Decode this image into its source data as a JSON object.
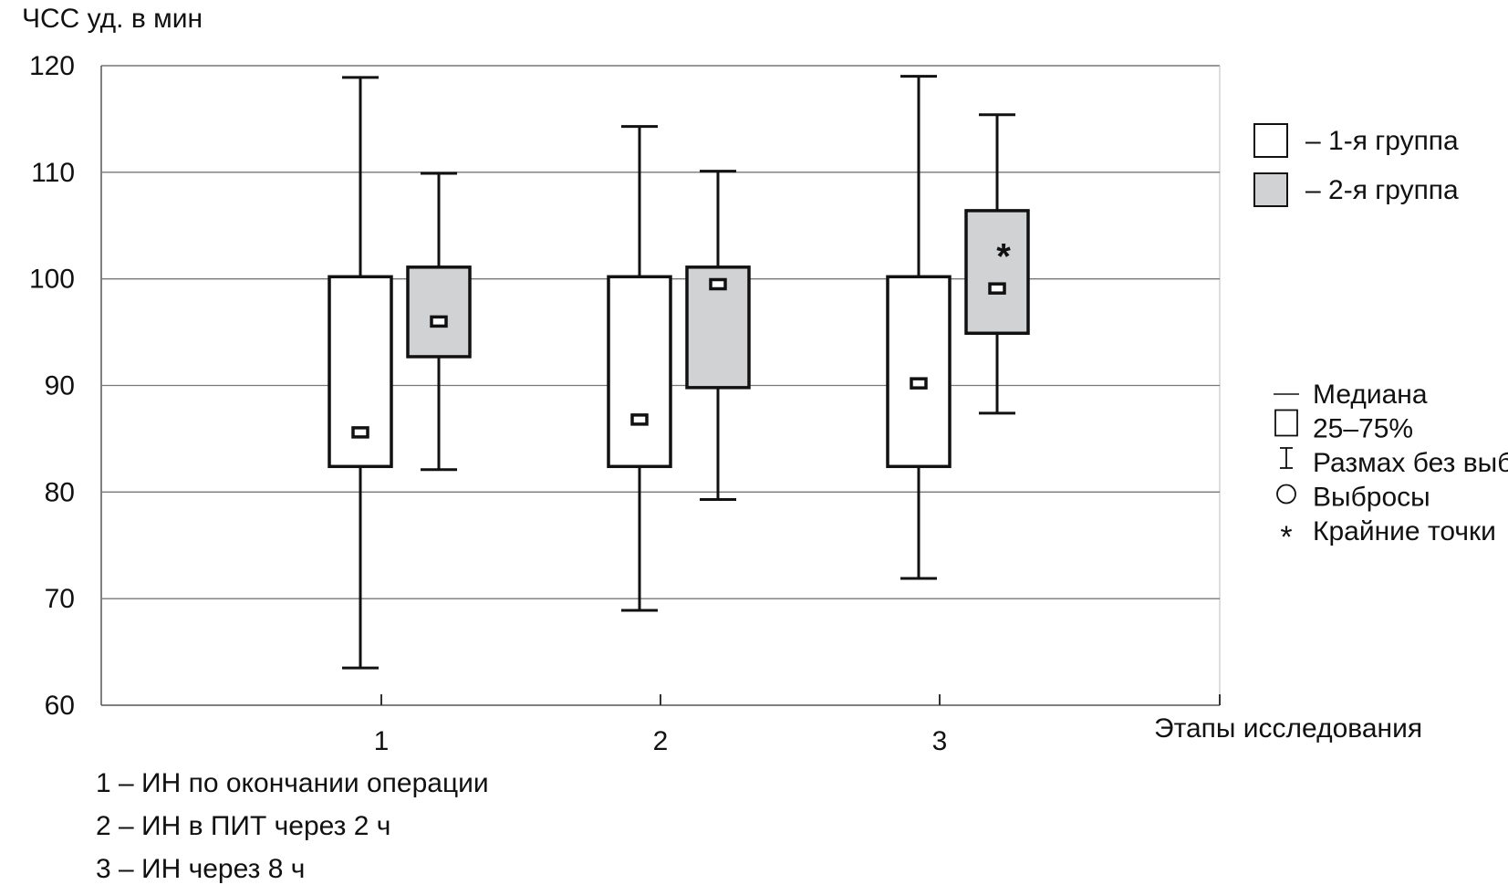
{
  "chart_data": {
    "type": "boxplot",
    "ylabel": "ЧСС уд. в мин",
    "xlabel": "Этапы исследования",
    "ylim": [
      60,
      120
    ],
    "yticks": [
      "60",
      "70",
      "80",
      "90",
      "100",
      "110",
      "120"
    ],
    "categories": [
      "1",
      "2",
      "3"
    ],
    "grid": true,
    "series": [
      {
        "name": "– 1-я группа",
        "fill": "#ffffff",
        "boxes": [
          {
            "whisker_low": 63.5,
            "q1": 82.4,
            "median": 85.6,
            "q3": 100.2,
            "whisker_high": 118.9
          },
          {
            "whisker_low": 68.9,
            "q1": 82.4,
            "median": 86.8,
            "q3": 100.2,
            "whisker_high": 114.3
          },
          {
            "whisker_low": 71.9,
            "q1": 82.4,
            "median": 90.2,
            "q3": 100.2,
            "whisker_high": 119.0
          }
        ]
      },
      {
        "name": "– 2-я группа",
        "fill": "#d1d2d4",
        "boxes": [
          {
            "whisker_low": 82.1,
            "q1": 92.7,
            "median": 96.0,
            "q3": 101.1,
            "whisker_high": 109.9
          },
          {
            "whisker_low": 79.3,
            "q1": 89.8,
            "median": 99.5,
            "q3": 101.1,
            "whisker_high": 110.1
          },
          {
            "whisker_low": 87.4,
            "q1": 94.9,
            "median": 99.1,
            "q3": 106.4,
            "whisker_high": 115.4,
            "extreme": 103.0
          }
        ]
      }
    ],
    "symbol_legend": [
      "Медиана",
      "25–75%",
      "Размах без выбр.",
      "Выбросы",
      "Крайние точки"
    ],
    "notes": [
      "1 – ИН по окончании операции",
      "2 – ИН в ПИТ через 2 ч",
      "3 – ИН через 8 ч"
    ],
    "extreme_marker": "*"
  }
}
